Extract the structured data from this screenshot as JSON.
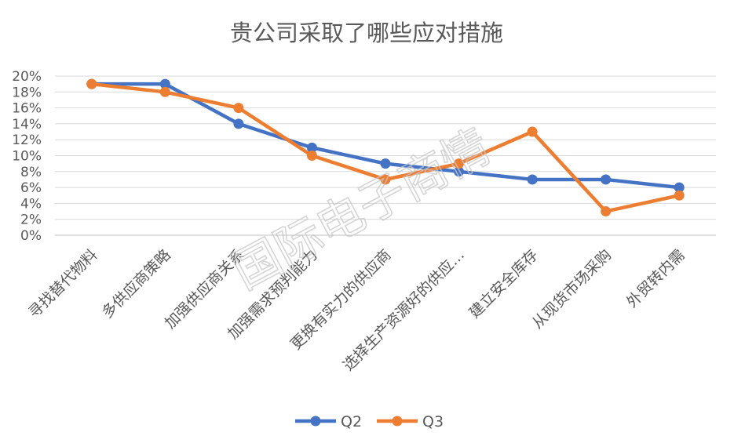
{
  "watermark_text": "国际电子商情",
  "chart_data": {
    "type": "line",
    "title": "贵公司采取了哪些应对措施",
    "xlabel": "",
    "ylabel": "",
    "categories": [
      "寻找替代物料",
      "多供应商策略",
      "加强供应商关系",
      "加强需求预判能力",
      "更换有实力的供应商",
      "选择生产资源好的供应…",
      "建立安全库存",
      "从现货市场采购",
      "外贸转内需"
    ],
    "y_tick_labels": [
      "0%",
      "2%",
      "4%",
      "6%",
      "8%",
      "10%",
      "12%",
      "14%",
      "16%",
      "18%",
      "20%"
    ],
    "ylim": [
      0,
      20
    ],
    "grid": true,
    "legend_position": "bottom",
    "series": [
      {
        "name": "Q2",
        "color": "#4472C4",
        "values": [
          19,
          19,
          14,
          11,
          9,
          8,
          7,
          7,
          6
        ]
      },
      {
        "name": "Q3",
        "color": "#ED7D31",
        "values": [
          19,
          18,
          16,
          10,
          7,
          9,
          13,
          3,
          5
        ]
      }
    ]
  }
}
